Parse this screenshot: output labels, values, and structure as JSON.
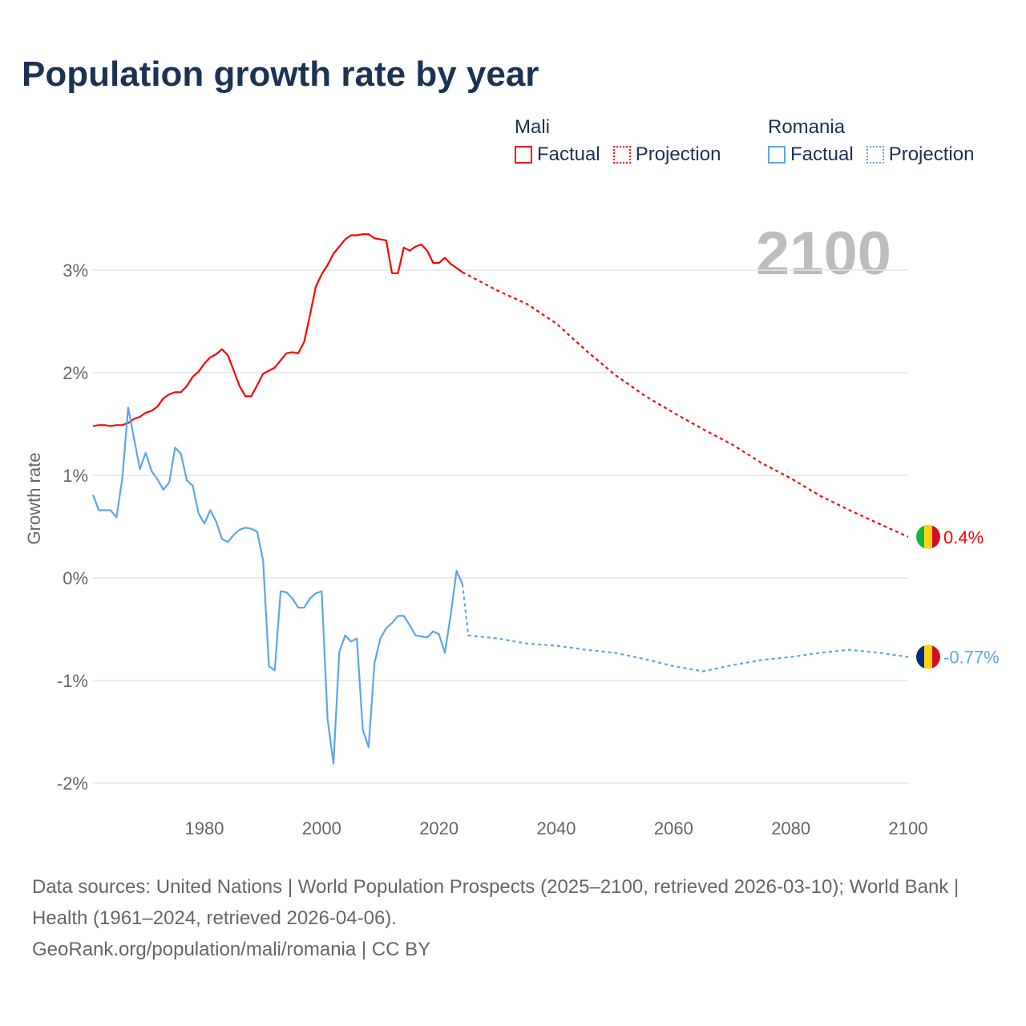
{
  "chart_data": {
    "type": "line",
    "title": "Population growth rate by year",
    "ylabel": "Growth rate",
    "xlabel": "",
    "xlim": [
      1961,
      2100
    ],
    "ylim": [
      -2.2,
      3.6
    ],
    "x_ticks": [
      1980,
      2000,
      2020,
      2040,
      2060,
      2080,
      2100
    ],
    "x_tick_labels": [
      "1980",
      "2000",
      "2020",
      "2040",
      "2060",
      "2080",
      "2100"
    ],
    "y_ticks": [
      3,
      2,
      1,
      0,
      -1,
      -2
    ],
    "y_tick_labels": [
      "3%",
      "2%",
      "1%",
      "0%",
      "-1%",
      "-2%"
    ],
    "grid": true,
    "year_watermark": "2100",
    "legend": {
      "placement": "top-right",
      "groups": [
        {
          "name": "Mali",
          "factual": "Factual",
          "projection": "Projection"
        },
        {
          "name": "Romania",
          "factual": "Factual",
          "projection": "Projection"
        }
      ]
    },
    "series": [
      {
        "name": "Mali",
        "color": "#ff0000",
        "end_label": "0.4%",
        "flag": [
          "#14b53a",
          "#fcd116",
          "#ce1126"
        ],
        "factual": {
          "x": [
            1961,
            1962,
            1963,
            1964,
            1965,
            1966,
            1967,
            1968,
            1969,
            1970,
            1971,
            1972,
            1973,
            1974,
            1975,
            1976,
            1977,
            1978,
            1979,
            1980,
            1981,
            1982,
            1983,
            1984,
            1985,
            1986,
            1987,
            1988,
            1989,
            1990,
            1991,
            1992,
            1993,
            1994,
            1995,
            1996,
            1997,
            1998,
            1999,
            2000,
            2001,
            2002,
            2003,
            2004,
            2005,
            2006,
            2007,
            2008,
            2009,
            2010,
            2011,
            2012,
            2013,
            2014,
            2015,
            2016,
            2017,
            2018,
            2019,
            2020,
            2021,
            2022,
            2023,
            2024
          ],
          "y": [
            1.48,
            1.49,
            1.49,
            1.48,
            1.49,
            1.49,
            1.51,
            1.55,
            1.57,
            1.61,
            1.63,
            1.67,
            1.75,
            1.79,
            1.81,
            1.81,
            1.87,
            1.96,
            2.01,
            2.09,
            2.15,
            2.18,
            2.23,
            2.17,
            2.02,
            1.87,
            1.77,
            1.77,
            1.88,
            1.99,
            2.02,
            2.05,
            2.12,
            2.19,
            2.2,
            2.19,
            2.3,
            2.56,
            2.84,
            2.96,
            3.05,
            3.16,
            3.23,
            3.3,
            3.34,
            3.34,
            3.35,
            3.35,
            3.31,
            3.3,
            3.29,
            2.97,
            2.97,
            3.22,
            3.19,
            3.23,
            3.25,
            3.19,
            3.07,
            3.07,
            3.12,
            3.06,
            3.02,
            2.98
          ]
        },
        "projection": {
          "x": [
            2024,
            2025,
            2030,
            2035,
            2040,
            2045,
            2050,
            2055,
            2060,
            2065,
            2070,
            2075,
            2080,
            2085,
            2090,
            2095,
            2100
          ],
          "y": [
            2.98,
            2.95,
            2.8,
            2.67,
            2.48,
            2.22,
            1.98,
            1.78,
            1.61,
            1.45,
            1.3,
            1.12,
            0.97,
            0.8,
            0.66,
            0.53,
            0.4
          ]
        }
      },
      {
        "name": "Romania",
        "color": "#5da5ea",
        "end_label": "-0.77%",
        "flag": [
          "#002b7f",
          "#fcd116",
          "#ce1126"
        ],
        "factual": {
          "x": [
            1961,
            1962,
            1963,
            1964,
            1965,
            1966,
            1967,
            1968,
            1969,
            1970,
            1971,
            1972,
            1973,
            1974,
            1975,
            1976,
            1977,
            1978,
            1979,
            1980,
            1981,
            1982,
            1983,
            1984,
            1985,
            1986,
            1987,
            1988,
            1989,
            1990,
            1991,
            1992,
            1993,
            1994,
            1995,
            1996,
            1997,
            1998,
            1999,
            2000,
            2001,
            2002,
            2003,
            2004,
            2005,
            2006,
            2007,
            2008,
            2009,
            2010,
            2011,
            2012,
            2013,
            2014,
            2015,
            2016,
            2017,
            2018,
            2019,
            2020,
            2021,
            2022,
            2023,
            2024
          ],
          "y": [
            0.81,
            0.66,
            0.66,
            0.66,
            0.59,
            0.97,
            1.66,
            1.36,
            1.06,
            1.22,
            1.04,
            0.96,
            0.86,
            0.93,
            1.27,
            1.21,
            0.95,
            0.9,
            0.63,
            0.53,
            0.66,
            0.55,
            0.38,
            0.35,
            0.42,
            0.47,
            0.49,
            0.48,
            0.45,
            0.17,
            -0.86,
            -0.9,
            -0.13,
            -0.14,
            -0.2,
            -0.29,
            -0.29,
            -0.2,
            -0.15,
            -0.13,
            -1.38,
            -1.81,
            -0.72,
            -0.56,
            -0.62,
            -0.59,
            -1.48,
            -1.65,
            -0.83,
            -0.59,
            -0.49,
            -0.44,
            -0.37,
            -0.37,
            -0.46,
            -0.56,
            -0.57,
            -0.58,
            -0.52,
            -0.55,
            -0.73,
            -0.36,
            0.07,
            -0.06
          ]
        },
        "projection": {
          "x": [
            2024,
            2025,
            2030,
            2035,
            2040,
            2045,
            2050,
            2055,
            2060,
            2065,
            2070,
            2075,
            2080,
            2085,
            2090,
            2095,
            2100
          ],
          "y": [
            -0.06,
            -0.56,
            -0.59,
            -0.64,
            -0.66,
            -0.7,
            -0.73,
            -0.79,
            -0.86,
            -0.91,
            -0.85,
            -0.8,
            -0.77,
            -0.73,
            -0.7,
            -0.73,
            -0.77
          ]
        }
      }
    ]
  },
  "footer": {
    "sources": "Data sources: United Nations | World Population Prospects (2025–2100, retrieved 2026-03-10); World Bank | Health (1961–2024, retrieved 2026-04-06).",
    "link": "GeoRank.org/population/mali/romania | CC BY"
  }
}
